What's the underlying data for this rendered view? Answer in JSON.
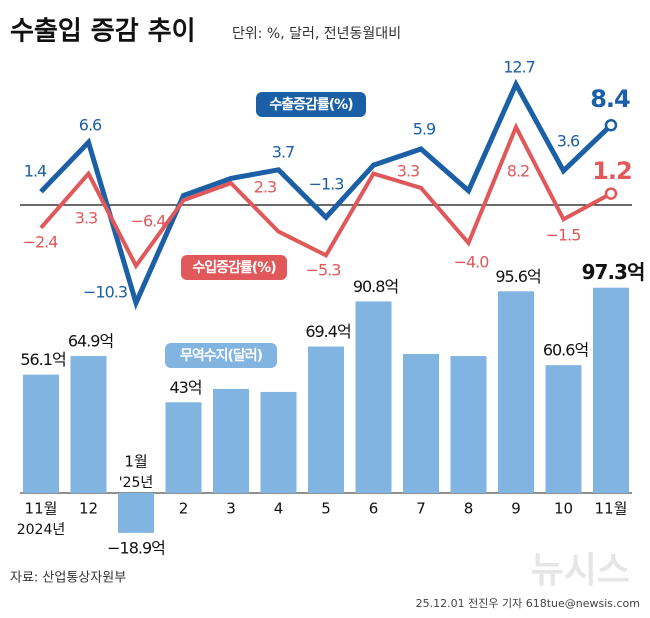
{
  "chart_data": {
    "type": "combo",
    "title": "수출입 증감 추이",
    "subtitle": "단위: %, 달러, 전년동월대비",
    "categories": [
      "11월",
      "12",
      "1월",
      "2",
      "3",
      "4",
      "5",
      "6",
      "7",
      "8",
      "9",
      "10",
      "11월"
    ],
    "category_sublabels": [
      "2024년",
      null,
      "'25년",
      null,
      null,
      null,
      null,
      null,
      null,
      null,
      null,
      null,
      null
    ],
    "series": [
      {
        "name": "수출증감률(%)",
        "type": "line",
        "color": "#1b5fa6",
        "values": [
          1.4,
          6.6,
          -10.3,
          1.0,
          2.8,
          3.7,
          -1.3,
          4.2,
          5.9,
          1.5,
          12.7,
          3.6,
          8.4
        ],
        "value_labels": [
          "1.4",
          "6.6",
          "−10.3",
          null,
          null,
          "3.7",
          "−1.3",
          null,
          "5.9",
          null,
          "12.7",
          "3.6",
          "8.4"
        ]
      },
      {
        "name": "수입증감률(%)",
        "type": "line",
        "color": "#e0585a",
        "values": [
          -2.4,
          3.3,
          -6.4,
          0.5,
          2.3,
          -2.8,
          -5.3,
          3.3,
          1.8,
          -4.0,
          8.2,
          -1.5,
          1.2
        ],
        "value_labels": [
          "−2.4",
          "3.3",
          "−6.4",
          null,
          "2.3",
          null,
          "−5.3",
          "3.3",
          null,
          "−4.0",
          "8.2",
          "−1.5",
          "1.2"
        ]
      },
      {
        "name": "무역수지(달러)",
        "type": "bar",
        "color": "#82b4e2",
        "values": [
          56.1,
          64.9,
          -18.9,
          43,
          49.3,
          47.9,
          69.4,
          90.8,
          65.9,
          64.9,
          95.6,
          60.6,
          97.3
        ],
        "value_labels": [
          "56.1억",
          "64.9억",
          "−18.9억",
          "43억",
          null,
          null,
          "69.4억",
          "90.8억",
          null,
          null,
          "95.6억",
          "60.6억",
          "97.3억"
        ]
      }
    ],
    "source": "자료: 산업통상자원부",
    "credit": "25.12.01 전진우 기자 618tue@newsis.com",
    "watermark": "뉴시스"
  }
}
